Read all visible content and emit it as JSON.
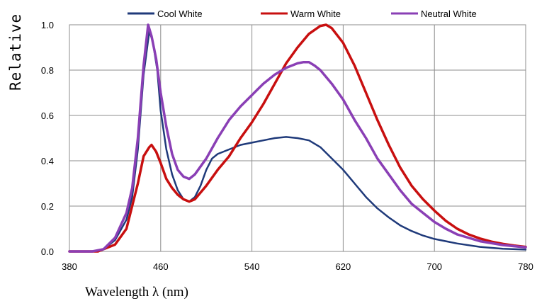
{
  "chart_data": {
    "type": "line",
    "title": "",
    "xlabel": "Wavelength λ   (nm)",
    "ylabel": "Relative",
    "xlim": [
      380,
      780
    ],
    "ylim": [
      0,
      1.0
    ],
    "grid": true,
    "legend_position": "top",
    "x_ticks": [
      "380",
      "460",
      "540",
      "620",
      "700",
      "780"
    ],
    "y_ticks": [
      "0.0",
      "0.2",
      "0.4",
      "0.6",
      "0.8",
      "1.0"
    ],
    "series": [
      {
        "name": "Cool White",
        "color": "#1f3a7a",
        "points": [
          [
            380,
            0
          ],
          [
            400,
            0
          ],
          [
            410,
            0.01
          ],
          [
            420,
            0.05
          ],
          [
            430,
            0.14
          ],
          [
            435,
            0.24
          ],
          [
            440,
            0.45
          ],
          [
            445,
            0.78
          ],
          [
            450,
            0.97
          ],
          [
            453,
            0.93
          ],
          [
            457,
            0.8
          ],
          [
            460,
            0.62
          ],
          [
            465,
            0.45
          ],
          [
            470,
            0.34
          ],
          [
            475,
            0.27
          ],
          [
            480,
            0.23
          ],
          [
            485,
            0.22
          ],
          [
            490,
            0.24
          ],
          [
            495,
            0.29
          ],
          [
            500,
            0.36
          ],
          [
            505,
            0.41
          ],
          [
            510,
            0.43
          ],
          [
            520,
            0.45
          ],
          [
            530,
            0.47
          ],
          [
            540,
            0.48
          ],
          [
            550,
            0.49
          ],
          [
            560,
            0.5
          ],
          [
            570,
            0.505
          ],
          [
            580,
            0.5
          ],
          [
            590,
            0.49
          ],
          [
            600,
            0.46
          ],
          [
            610,
            0.41
          ],
          [
            620,
            0.36
          ],
          [
            630,
            0.3
          ],
          [
            640,
            0.24
          ],
          [
            650,
            0.19
          ],
          [
            660,
            0.15
          ],
          [
            670,
            0.115
          ],
          [
            680,
            0.09
          ],
          [
            690,
            0.07
          ],
          [
            700,
            0.055
          ],
          [
            720,
            0.035
          ],
          [
            740,
            0.02
          ],
          [
            760,
            0.012
          ],
          [
            780,
            0.008
          ]
        ]
      },
      {
        "name": "Warm White",
        "color": "#c80f0f",
        "points": [
          [
            380,
            0
          ],
          [
            405,
            0
          ],
          [
            410,
            0.01
          ],
          [
            420,
            0.03
          ],
          [
            430,
            0.1
          ],
          [
            440,
            0.3
          ],
          [
            445,
            0.42
          ],
          [
            450,
            0.46
          ],
          [
            452,
            0.47
          ],
          [
            456,
            0.44
          ],
          [
            460,
            0.39
          ],
          [
            465,
            0.32
          ],
          [
            470,
            0.28
          ],
          [
            475,
            0.25
          ],
          [
            480,
            0.23
          ],
          [
            485,
            0.22
          ],
          [
            490,
            0.23
          ],
          [
            500,
            0.29
          ],
          [
            510,
            0.36
          ],
          [
            520,
            0.42
          ],
          [
            530,
            0.5
          ],
          [
            540,
            0.57
          ],
          [
            550,
            0.65
          ],
          [
            560,
            0.74
          ],
          [
            570,
            0.83
          ],
          [
            580,
            0.9
          ],
          [
            590,
            0.96
          ],
          [
            600,
            0.995
          ],
          [
            605,
            1.0
          ],
          [
            610,
            0.985
          ],
          [
            620,
            0.92
          ],
          [
            630,
            0.82
          ],
          [
            640,
            0.7
          ],
          [
            650,
            0.58
          ],
          [
            660,
            0.47
          ],
          [
            670,
            0.37
          ],
          [
            680,
            0.29
          ],
          [
            690,
            0.23
          ],
          [
            700,
            0.18
          ],
          [
            710,
            0.135
          ],
          [
            720,
            0.1
          ],
          [
            730,
            0.075
          ],
          [
            740,
            0.057
          ],
          [
            750,
            0.043
          ],
          [
            760,
            0.033
          ],
          [
            770,
            0.026
          ],
          [
            780,
            0.02
          ]
        ]
      },
      {
        "name": "Neutral White",
        "color": "#8a3fb5",
        "points": [
          [
            380,
            0
          ],
          [
            400,
            0
          ],
          [
            410,
            0.01
          ],
          [
            420,
            0.06
          ],
          [
            430,
            0.17
          ],
          [
            435,
            0.28
          ],
          [
            440,
            0.5
          ],
          [
            445,
            0.82
          ],
          [
            449,
            1.0
          ],
          [
            452,
            0.95
          ],
          [
            456,
            0.85
          ],
          [
            460,
            0.7
          ],
          [
            465,
            0.55
          ],
          [
            470,
            0.43
          ],
          [
            475,
            0.36
          ],
          [
            480,
            0.33
          ],
          [
            485,
            0.32
          ],
          [
            490,
            0.34
          ],
          [
            500,
            0.41
          ],
          [
            510,
            0.5
          ],
          [
            520,
            0.58
          ],
          [
            530,
            0.64
          ],
          [
            540,
            0.69
          ],
          [
            550,
            0.74
          ],
          [
            560,
            0.78
          ],
          [
            570,
            0.81
          ],
          [
            580,
            0.83
          ],
          [
            585,
            0.835
          ],
          [
            590,
            0.835
          ],
          [
            595,
            0.82
          ],
          [
            600,
            0.8
          ],
          [
            610,
            0.74
          ],
          [
            620,
            0.67
          ],
          [
            630,
            0.58
          ],
          [
            640,
            0.5
          ],
          [
            650,
            0.41
          ],
          [
            660,
            0.34
          ],
          [
            670,
            0.27
          ],
          [
            680,
            0.21
          ],
          [
            690,
            0.17
          ],
          [
            700,
            0.13
          ],
          [
            710,
            0.1
          ],
          [
            720,
            0.075
          ],
          [
            740,
            0.045
          ],
          [
            760,
            0.028
          ],
          [
            780,
            0.018
          ]
        ]
      }
    ]
  }
}
